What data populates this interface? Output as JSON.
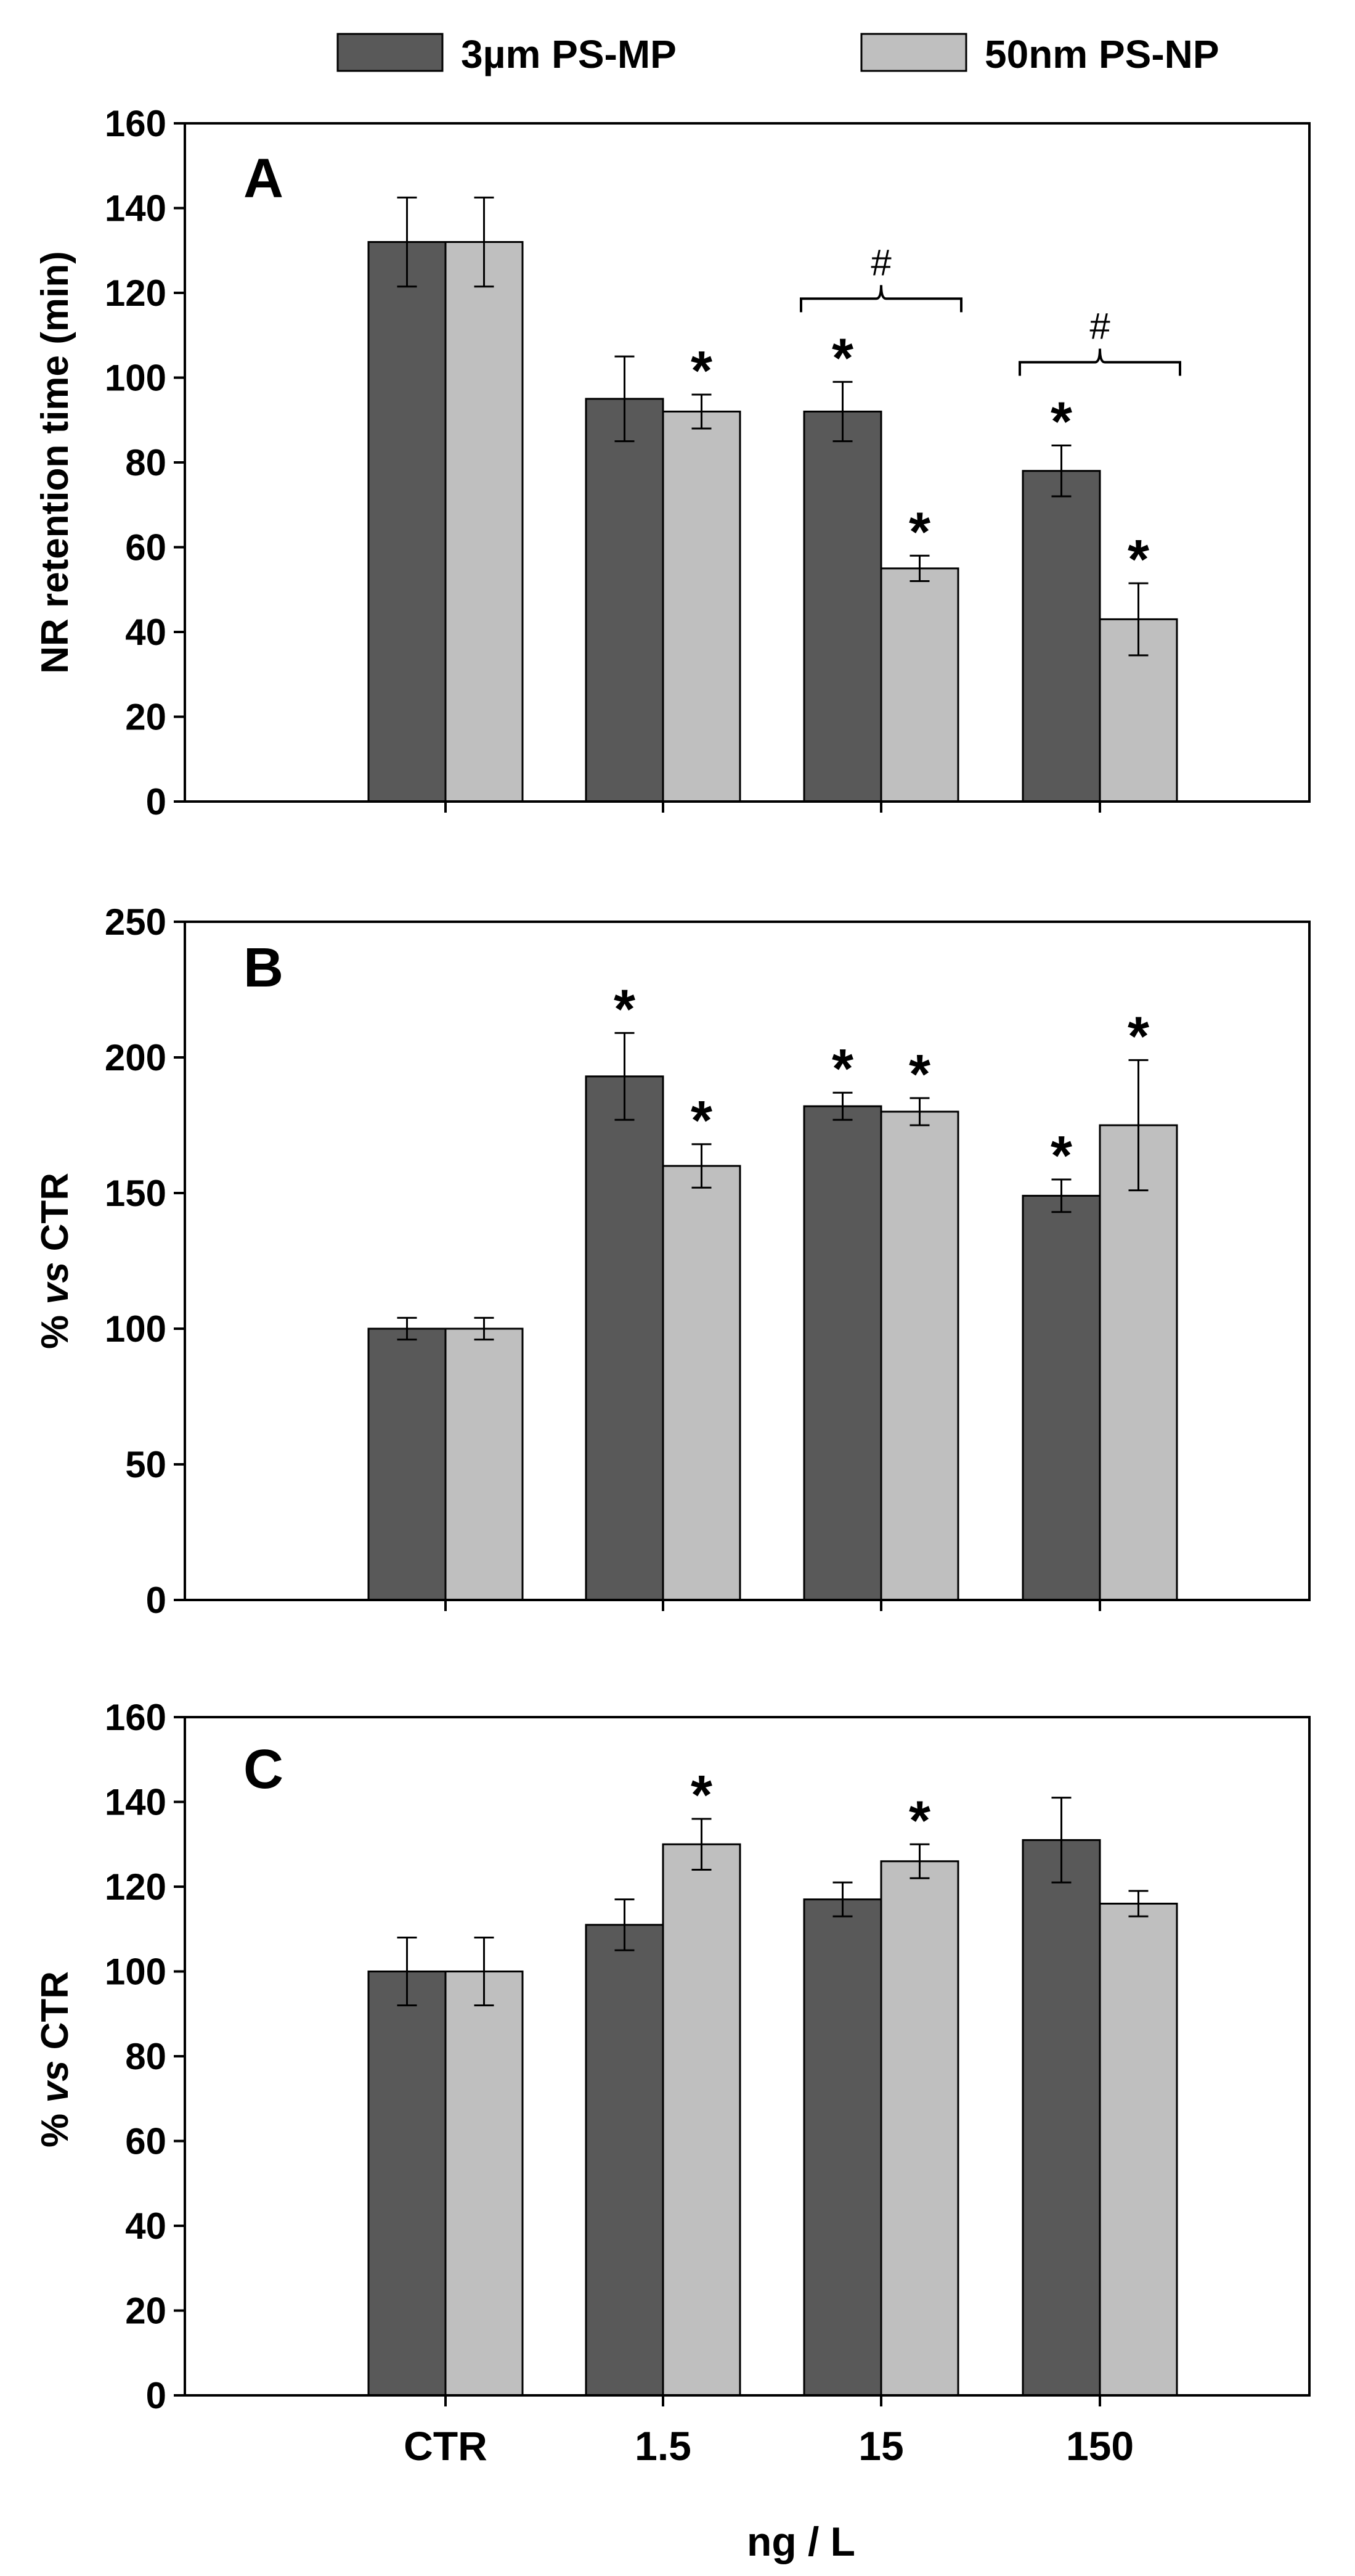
{
  "chart_data": {
    "type": "bar",
    "legend": {
      "placement": "top",
      "entries": [
        {
          "name": "3µm PS-MP",
          "color": "#595959"
        },
        {
          "name": "50nm PS-NP",
          "color": "#bfbfbf"
        }
      ]
    },
    "categories": [
      "CTR",
      "1.5",
      "15",
      "150"
    ],
    "xlabel": "ng / L",
    "panels": [
      {
        "label": "A",
        "ylabel": "NR retention time (min)",
        "ylim": [
          0,
          160
        ],
        "yticks": [
          0,
          20,
          40,
          60,
          80,
          100,
          120,
          140,
          160
        ],
        "series": [
          {
            "name": "3µm PS-MP",
            "values": [
              132,
              95,
              92,
              78
            ],
            "errors": [
              10.5,
              10,
              7,
              6
            ],
            "significance": [
              "",
              "",
              "*",
              "*"
            ]
          },
          {
            "name": "50nm PS-NP",
            "values": [
              132,
              92,
              55,
              43
            ],
            "errors": [
              10.5,
              4,
              3,
              8.5
            ],
            "significance": [
              "",
              "*",
              "*",
              "*"
            ]
          }
        ],
        "brackets": [
          {
            "category": "15",
            "symbol": "#"
          },
          {
            "category": "150",
            "symbol": "#"
          }
        ]
      },
      {
        "label": "B",
        "ylabel": "% vs CTR",
        "ylim": [
          0,
          250
        ],
        "yticks": [
          0,
          50,
          100,
          150,
          200,
          250
        ],
        "series": [
          {
            "name": "3µm PS-MP",
            "values": [
              100,
              193,
              182,
              149
            ],
            "errors": [
              4,
              16,
              5,
              6
            ],
            "significance": [
              "",
              "*",
              "*",
              "*"
            ]
          },
          {
            "name": "50nm PS-NP",
            "values": [
              100,
              160,
              180,
              175
            ],
            "errors": [
              4,
              8,
              5,
              24
            ],
            "significance": [
              "",
              "*",
              "*",
              "*"
            ]
          }
        ],
        "brackets": []
      },
      {
        "label": "C",
        "ylabel": "% vs CTR",
        "ylim": [
          0,
          160
        ],
        "yticks": [
          0,
          20,
          40,
          60,
          80,
          100,
          120,
          140,
          160
        ],
        "series": [
          {
            "name": "3µm PS-MP",
            "values": [
              100,
              111,
              117,
              131
            ],
            "errors": [
              8,
              6,
              4,
              10
            ],
            "significance": [
              "",
              "",
              "",
              ""
            ]
          },
          {
            "name": "50nm PS-NP",
            "values": [
              100,
              130,
              126,
              116
            ],
            "errors": [
              8,
              6,
              4,
              3
            ],
            "significance": [
              "",
              "*",
              "*",
              ""
            ]
          }
        ],
        "brackets": []
      }
    ]
  }
}
